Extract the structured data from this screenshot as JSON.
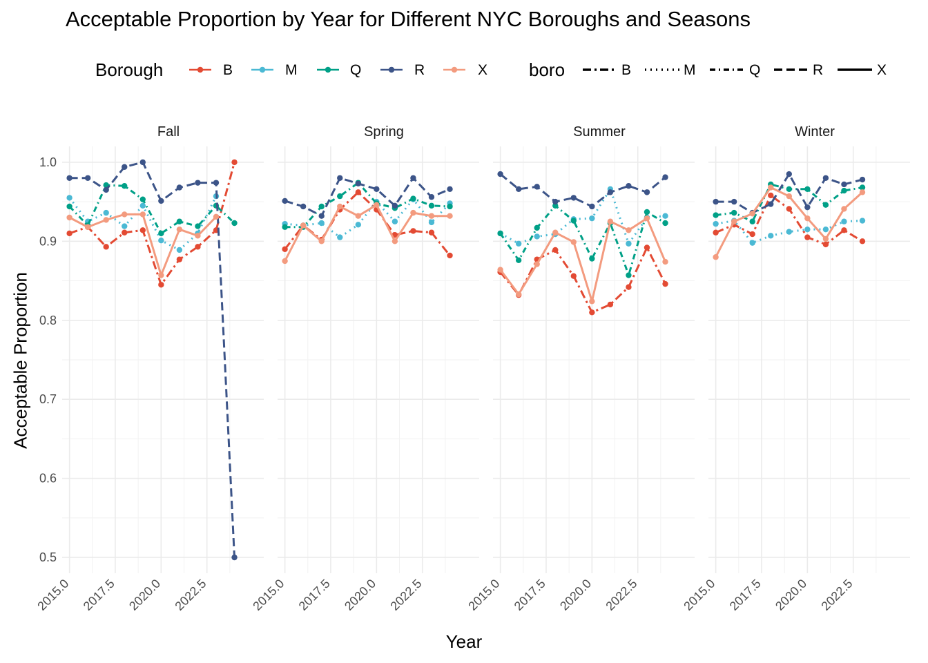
{
  "chart_data": {
    "type": "line",
    "title": "Acceptable Proportion by Year for Different NYC Boroughs and Seasons",
    "xlabel": "Year",
    "ylabel": "Acceptable Proportion",
    "xlim": [
      2014.6,
      2025.6
    ],
    "ylim": [
      0.48,
      1.02
    ],
    "x_ticks": [
      2015.0,
      2017.5,
      2020.0,
      2022.5
    ],
    "x_tick_labels": [
      "2015.0",
      "2017.5",
      "2020.0",
      "2022.5"
    ],
    "y_ticks": [
      0.5,
      0.6,
      0.7,
      0.8,
      0.9,
      1.0
    ],
    "y_tick_labels": [
      "0.5",
      "0.6",
      "0.7",
      "0.8",
      "0.9",
      "1.0"
    ],
    "grid": true,
    "legend_color_title": "Borough",
    "legend_linetype_title": "boro",
    "legend_position": "top",
    "boroughs": [
      "B",
      "M",
      "Q",
      "R",
      "X"
    ],
    "colors": {
      "B": "#e34a33",
      "M": "#4bb9d4",
      "Q": "#00a087",
      "R": "#3c5488",
      "X": "#f39b7f"
    },
    "linetypes": {
      "B": "longdash-dot",
      "M": "dotted",
      "Q": "dash-dot",
      "R": "long-dash",
      "X": "solid"
    },
    "facets": [
      {
        "label": "Fall",
        "series": [
          {
            "name": "B",
            "x": [
              2015,
              2016,
              2017,
              2018,
              2019,
              2020,
              2021,
              2022,
              2023,
              2024
            ],
            "y": [
              0.91,
              0.918,
              0.893,
              0.911,
              0.914,
              0.845,
              0.877,
              0.893,
              0.914,
              1.0
            ]
          },
          {
            "name": "M",
            "x": [
              2015,
              2016,
              2017,
              2018,
              2019,
              2020,
              2021,
              2022,
              2023
            ],
            "y": [
              0.955,
              0.925,
              0.936,
              0.919,
              0.945,
              0.901,
              0.889,
              0.91,
              0.957
            ]
          },
          {
            "name": "Q",
            "x": [
              2015,
              2016,
              2017,
              2018,
              2019,
              2020,
              2021,
              2022,
              2023,
              2024
            ],
            "y": [
              0.944,
              0.92,
              0.971,
              0.97,
              0.953,
              0.91,
              0.925,
              0.919,
              0.945,
              0.923
            ]
          },
          {
            "name": "R",
            "x": [
              2015,
              2016,
              2017,
              2018,
              2019,
              2020,
              2021,
              2022,
              2023,
              2024
            ],
            "y": [
              0.98,
              0.98,
              0.965,
              0.994,
              1.0,
              0.951,
              0.968,
              0.974,
              0.974,
              0.5
            ]
          },
          {
            "name": "X",
            "x": [
              2015,
              2016,
              2017,
              2018,
              2019,
              2020,
              2021,
              2022,
              2023
            ],
            "y": [
              0.93,
              0.918,
              0.927,
              0.934,
              0.934,
              0.857,
              0.915,
              0.907,
              0.931
            ]
          }
        ]
      },
      {
        "label": "Spring",
        "series": [
          {
            "name": "B",
            "x": [
              2015,
              2016,
              2017,
              2018,
              2019,
              2020,
              2021,
              2022,
              2023,
              2024
            ],
            "y": [
              0.89,
              0.92,
              0.902,
              0.94,
              0.962,
              0.94,
              0.908,
              0.913,
              0.911,
              0.882
            ]
          },
          {
            "name": "M",
            "x": [
              2015,
              2016,
              2017,
              2018,
              2019,
              2020,
              2021,
              2022,
              2023,
              2024
            ],
            "y": [
              0.922,
              0.92,
              0.923,
              0.905,
              0.921,
              0.95,
              0.925,
              0.953,
              0.924,
              0.948
            ]
          },
          {
            "name": "Q",
            "x": [
              2015,
              2016,
              2017,
              2018,
              2019,
              2020,
              2021,
              2022,
              2023,
              2024
            ],
            "y": [
              0.918,
              0.918,
              0.944,
              0.957,
              0.974,
              0.948,
              0.942,
              0.954,
              0.945,
              0.944
            ]
          },
          {
            "name": "R",
            "x": [
              2015,
              2016,
              2017,
              2018,
              2019,
              2020,
              2021,
              2022,
              2023,
              2024
            ],
            "y": [
              0.951,
              0.944,
              0.932,
              0.98,
              0.973,
              0.966,
              0.945,
              0.98,
              0.956,
              0.966
            ]
          },
          {
            "name": "X",
            "x": [
              2015,
              2016,
              2017,
              2018,
              2019,
              2020,
              2021,
              2022,
              2023,
              2024
            ],
            "y": [
              0.875,
              0.92,
              0.9,
              0.944,
              0.932,
              0.946,
              0.9,
              0.936,
              0.932,
              0.932
            ]
          }
        ]
      },
      {
        "label": "Summer",
        "series": [
          {
            "name": "B",
            "x": [
              2015,
              2016,
              2017,
              2018,
              2019,
              2020,
              2021,
              2022,
              2023,
              2024
            ],
            "y": [
              0.861,
              0.832,
              0.877,
              0.889,
              0.856,
              0.81,
              0.82,
              0.842,
              0.892,
              0.846
            ]
          },
          {
            "name": "M",
            "x": [
              2015,
              2016,
              2017,
              2018,
              2019,
              2020,
              2021,
              2022,
              2023,
              2024
            ],
            "y": [
              0.91,
              0.897,
              0.906,
              0.909,
              0.928,
              0.929,
              0.966,
              0.897,
              0.93,
              0.932
            ]
          },
          {
            "name": "Q",
            "x": [
              2015,
              2016,
              2017,
              2018,
              2019,
              2020,
              2021,
              2022,
              2023,
              2024
            ],
            "y": [
              0.91,
              0.876,
              0.917,
              0.945,
              0.926,
              0.878,
              0.923,
              0.857,
              0.937,
              0.923
            ]
          },
          {
            "name": "R",
            "x": [
              2015,
              2016,
              2017,
              2018,
              2019,
              2020,
              2021,
              2022,
              2023,
              2024
            ],
            "y": [
              0.985,
              0.966,
              0.969,
              0.95,
              0.955,
              0.944,
              0.962,
              0.97,
              0.962,
              0.981
            ]
          },
          {
            "name": "X",
            "x": [
              2015,
              2016,
              2017,
              2018,
              2019,
              2020,
              2021,
              2022,
              2023,
              2024
            ],
            "y": [
              0.864,
              0.833,
              0.871,
              0.911,
              0.899,
              0.824,
              0.925,
              0.914,
              0.929,
              0.874
            ]
          }
        ]
      },
      {
        "label": "Winter",
        "series": [
          {
            "name": "B",
            "x": [
              2015,
              2016,
              2017,
              2018,
              2019,
              2020,
              2021,
              2022,
              2023
            ],
            "y": [
              0.911,
              0.921,
              0.909,
              0.958,
              0.941,
              0.905,
              0.896,
              0.914,
              0.9
            ]
          },
          {
            "name": "M",
            "x": [
              2015,
              2016,
              2017,
              2018,
              2019,
              2020,
              2021,
              2022,
              2023
            ],
            "y": [
              0.922,
              0.926,
              0.898,
              0.907,
              0.912,
              0.915,
              0.915,
              0.925,
              0.926
            ]
          },
          {
            "name": "Q",
            "x": [
              2015,
              2016,
              2017,
              2018,
              2019,
              2020,
              2021,
              2022,
              2023
            ],
            "y": [
              0.933,
              0.936,
              0.925,
              0.972,
              0.966,
              0.966,
              0.946,
              0.964,
              0.968
            ]
          },
          {
            "name": "R",
            "x": [
              2015,
              2016,
              2017,
              2018,
              2019,
              2020,
              2021,
              2022,
              2023
            ],
            "y": [
              0.95,
              0.95,
              0.936,
              0.947,
              0.985,
              0.943,
              0.98,
              0.972,
              0.978
            ]
          },
          {
            "name": "X",
            "x": [
              2015,
              2016,
              2017,
              2018,
              2019,
              2020,
              2021,
              2022,
              2023
            ],
            "y": [
              0.88,
              0.925,
              0.935,
              0.968,
              0.957,
              0.929,
              0.903,
              0.941,
              0.962
            ]
          }
        ]
      }
    ]
  }
}
